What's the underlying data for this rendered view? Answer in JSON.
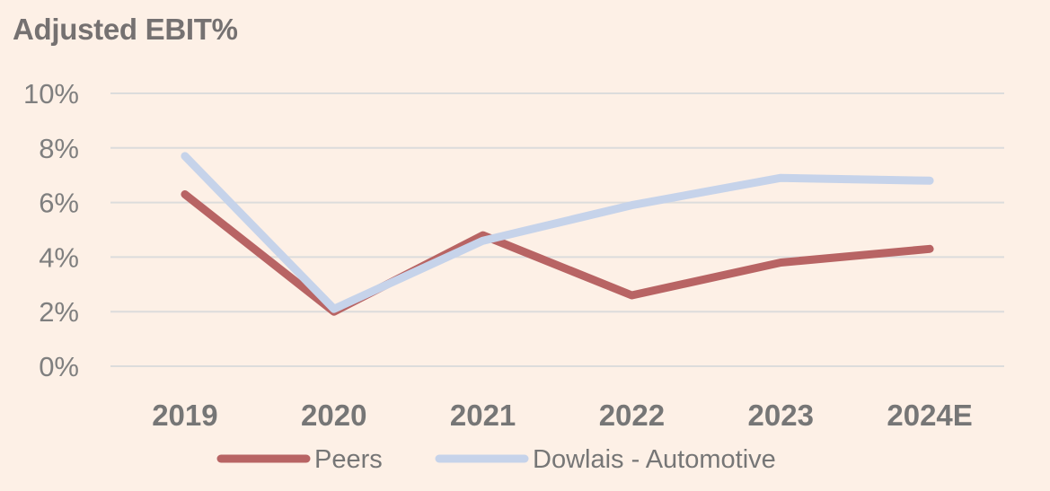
{
  "chart_data": {
    "type": "line",
    "title": "Adjusted EBIT%",
    "xlabel": "",
    "ylabel": "",
    "x": [
      "2019",
      "2020",
      "2021",
      "2022",
      "2023",
      "2024E"
    ],
    "ylim": [
      0,
      10
    ],
    "yticks": [
      0,
      2,
      4,
      6,
      8,
      10
    ],
    "ytick_labels": [
      "0%",
      "2%",
      "4%",
      "6%",
      "8%",
      "10%"
    ],
    "grid": true,
    "legend_position": "bottom",
    "series": [
      {
        "name": "Peers",
        "color": "#b86464",
        "values": [
          6.3,
          2.0,
          4.8,
          2.6,
          3.8,
          4.3
        ]
      },
      {
        "name": "Dowlais - Automotive",
        "color": "#c6d3ea",
        "values": [
          7.7,
          2.1,
          4.6,
          5.9,
          6.9,
          6.8
        ]
      }
    ]
  }
}
